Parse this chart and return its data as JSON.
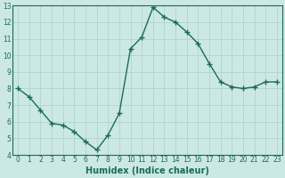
{
  "xlabel": "Humidex (Indice chaleur)",
  "ylabel": "",
  "x": [
    0,
    1,
    2,
    3,
    4,
    5,
    6,
    7,
    8,
    9,
    10,
    11,
    12,
    13,
    14,
    15,
    16,
    17,
    18,
    19,
    20,
    21,
    22,
    23
  ],
  "y": [
    8.0,
    7.5,
    6.7,
    5.9,
    5.8,
    5.4,
    4.8,
    4.3,
    5.2,
    6.5,
    10.4,
    11.1,
    12.9,
    12.3,
    12.0,
    11.4,
    10.7,
    9.5,
    8.4,
    8.1,
    8.0,
    8.1,
    8.4,
    8.4
  ],
  "line_color": "#1a6b5a",
  "marker": "+",
  "marker_size": 4,
  "bg_color": "#cce8e4",
  "grid_color": "#b0d4ce",
  "ylim": [
    4,
    13
  ],
  "yticks": [
    4,
    5,
    6,
    7,
    8,
    9,
    10,
    11,
    12,
    13
  ],
  "xlim": [
    -0.5,
    23.5
  ],
  "xticks": [
    0,
    1,
    2,
    3,
    4,
    5,
    6,
    7,
    8,
    9,
    10,
    11,
    12,
    13,
    14,
    15,
    16,
    17,
    18,
    19,
    20,
    21,
    22,
    23
  ],
  "tick_fontsize": 5.5,
  "label_fontsize": 7.0,
  "line_width": 1.0
}
